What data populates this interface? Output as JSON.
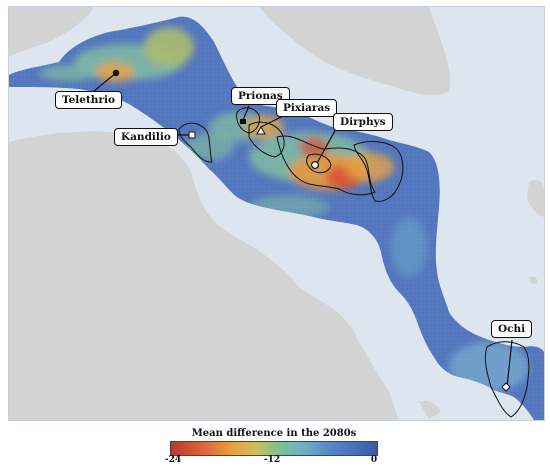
{
  "map": {
    "labels": {
      "telethrio": "Telethrio",
      "prionas": "Prionas",
      "pixiaras": "Pixiaras",
      "kandilio": "Kandilio",
      "dirphys": "Dirphys",
      "ochi": "Ochi"
    },
    "colors": {
      "sea": "#dde6ee",
      "land": "#d3d3d3",
      "raster_base": "#4a6ab8",
      "hot": "#d84a2e",
      "warm": "#e89a3a",
      "mid": "#73bf95"
    }
  },
  "legend": {
    "title": "Mean difference in the 2080s",
    "ticks": [
      "-24",
      "-12",
      "0"
    ],
    "scale_min": -24,
    "scale_max": 0
  }
}
